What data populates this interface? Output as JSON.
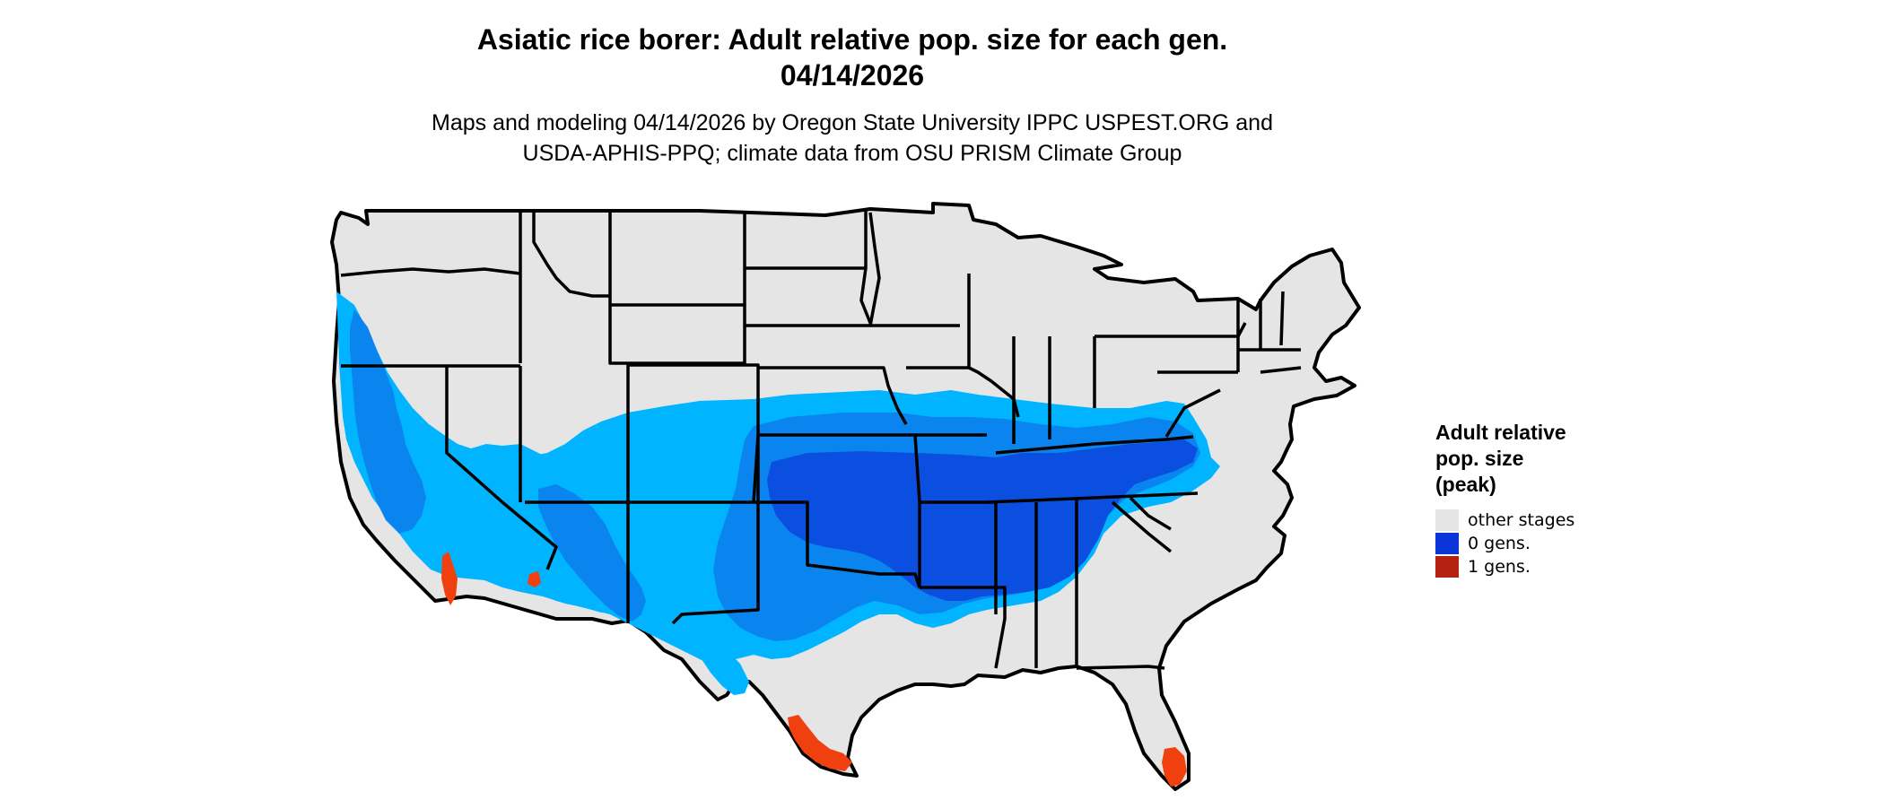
{
  "title": {
    "line1": "Asiatic rice borer: Adult relative pop. size for each gen.",
    "line2": "04/14/2026"
  },
  "subtitle": {
    "line1": "Maps and modeling 04/14/2026 by Oregon State University IPPC USPEST.ORG and",
    "line2": "USDA-APHIS-PPQ; climate data from OSU PRISM Climate Group"
  },
  "legend": {
    "title_lines": [
      "Adult relative",
      "pop. size",
      "(peak)"
    ],
    "items": [
      {
        "label": "other stages",
        "color": "#e5e5e5"
      },
      {
        "label": "0 gens.",
        "color": "#0a35d8"
      },
      {
        "label": "1 gens.",
        "color": "#b32110"
      }
    ]
  },
  "map_colors": {
    "land": "#e5e5e5",
    "light_blue": "#00b4ff",
    "mid_blue": "#0a85f0",
    "dark_blue": "#0a4fe0",
    "red_orange": "#f04010",
    "border": "#000000"
  }
}
